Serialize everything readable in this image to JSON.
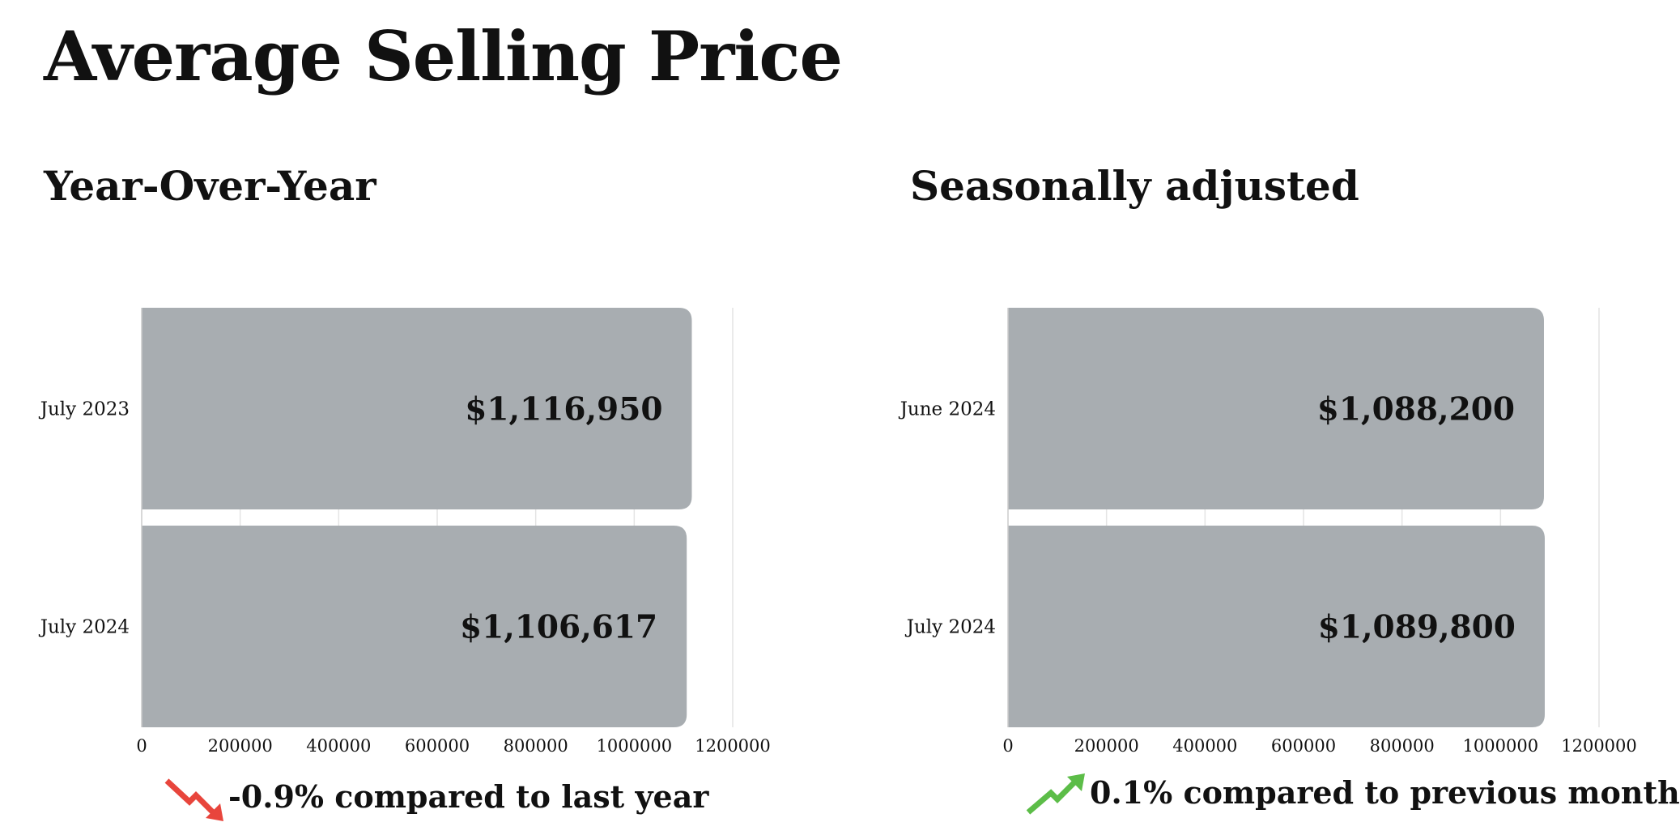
{
  "page": {
    "title": "Average Selling Price"
  },
  "panels": [
    {
      "subtitle": "Year-Over-Year",
      "change_text": "-0.9% compared to last year",
      "trend_icon": "trending-down-icon",
      "trend_color": "#e8453c"
    },
    {
      "subtitle": "Seasonally adjusted",
      "change_text": "0.1% compared to previous month",
      "trend_icon": "trending-up-icon",
      "trend_color": "#5cbd48"
    }
  ],
  "colors": {
    "bar": "#a8adb1",
    "grid": "#e4e4e4",
    "text": "#111111"
  },
  "chart_data": [
    {
      "type": "bar",
      "orientation": "horizontal",
      "categories": [
        "July 2023",
        "July 2024"
      ],
      "values": [
        1116950,
        1106617
      ],
      "data_labels": [
        "$1,116,950",
        "$1,106,617"
      ],
      "xlim": [
        0,
        1200000
      ],
      "xticks": [
        0,
        200000,
        400000,
        600000,
        800000,
        1000000,
        1200000
      ],
      "xtick_labels": [
        "0",
        "200000",
        "400000",
        "600000",
        "800000",
        "1000000",
        "1200000"
      ],
      "grid": true,
      "legend": false
    },
    {
      "type": "bar",
      "orientation": "horizontal",
      "categories": [
        "June 2024",
        "July 2024"
      ],
      "values": [
        1088200,
        1089800
      ],
      "data_labels": [
        "$1,088,200",
        "$1,089,800"
      ],
      "xlim": [
        0,
        1200000
      ],
      "xticks": [
        0,
        200000,
        400000,
        600000,
        800000,
        1000000,
        1200000
      ],
      "xtick_labels": [
        "0",
        "200000",
        "400000",
        "600000",
        "800000",
        "1000000",
        "1200000"
      ],
      "grid": true,
      "legend": false
    }
  ]
}
